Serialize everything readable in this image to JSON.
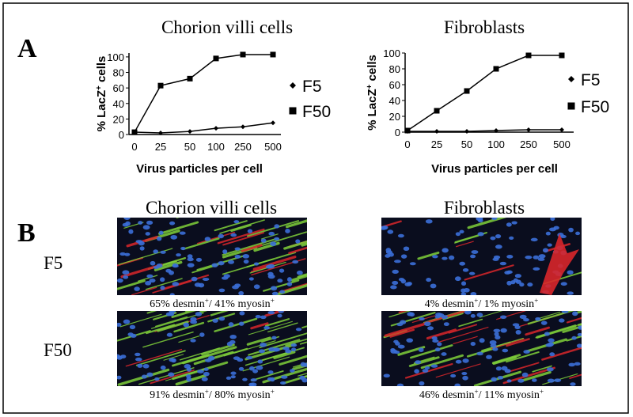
{
  "panel_labels": [
    "A",
    "B"
  ],
  "chart_data": [
    {
      "type": "line",
      "title": "Chorion villi cells",
      "x_label": "Virus particles per cell",
      "y_label": [
        "% LacZ",
        "+",
        " cells"
      ],
      "categories": [
        "0",
        "25",
        "50",
        "100",
        "250",
        "500"
      ],
      "series": [
        {
          "name": "F5",
          "color": "#000000",
          "marker": "diamond",
          "values": [
            3,
            2,
            4,
            8,
            10,
            15
          ]
        },
        {
          "name": "F50",
          "color": "#000000",
          "marker": "square",
          "values": [
            3,
            63,
            72,
            98,
            103,
            103
          ]
        }
      ],
      "ylim": [
        0,
        105
      ],
      "yticks": [
        0,
        20,
        40,
        60,
        80,
        100
      ]
    },
    {
      "type": "line",
      "title": "Fibroblasts",
      "x_label": "Virus particles per cell",
      "y_label": [
        "% LacZ",
        "+",
        " cells"
      ],
      "categories": [
        "0",
        "25",
        "50",
        "100",
        "250",
        "500"
      ],
      "series": [
        {
          "name": "F5",
          "color": "#000000",
          "marker": "diamond",
          "values": [
            1,
            1,
            1,
            2,
            3,
            3
          ]
        },
        {
          "name": "F50",
          "color": "#000000",
          "marker": "square",
          "values": [
            2,
            27,
            52,
            80,
            97,
            97
          ]
        }
      ],
      "ylim": [
        0,
        100
      ],
      "yticks": [
        0,
        20,
        40,
        60,
        80,
        100
      ]
    }
  ],
  "micrographs": {
    "column_titles": [
      "Chorion villi cells",
      "Fibroblasts"
    ],
    "row_labels": [
      "F5",
      "F50"
    ],
    "captions": [
      [
        [
          "65% desmin",
          "+",
          "/ 41% myosin",
          "+"
        ],
        [
          "4% desmin",
          "+",
          "/ 1% myosin",
          "+"
        ]
      ],
      [
        [
          "91% desmin",
          "+",
          "/ 80% myosin",
          "+"
        ],
        [
          "46% desmin",
          "+",
          "/ 11% myosin",
          "+"
        ]
      ]
    ]
  }
}
